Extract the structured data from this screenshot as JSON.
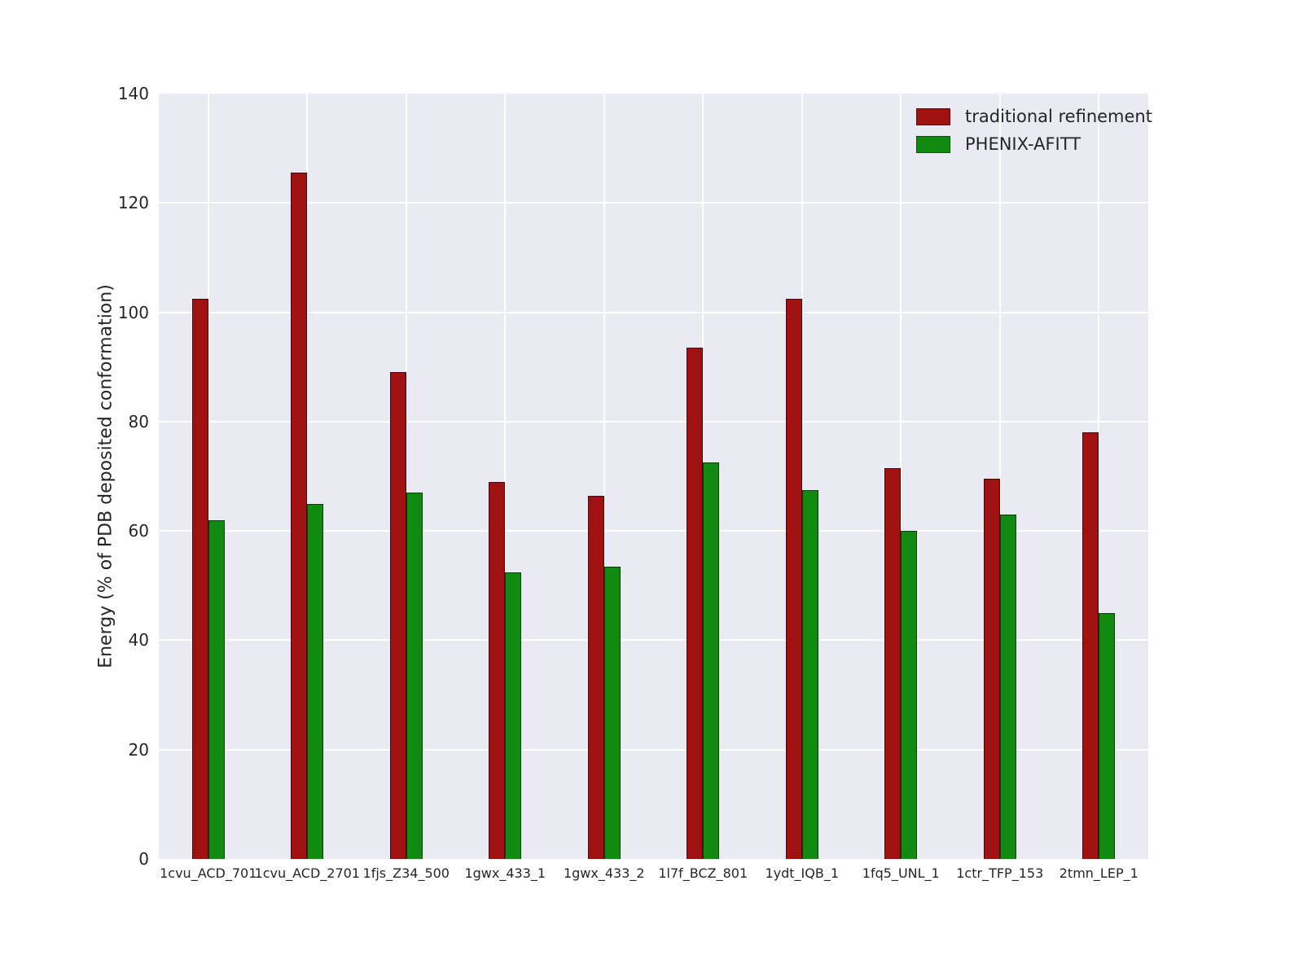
{
  "chart_data": {
    "type": "bar",
    "title": "",
    "xlabel": "",
    "ylabel": "Energy (% of PDB deposited conformation)",
    "ylim": [
      0,
      140
    ],
    "yticks": [
      0,
      20,
      40,
      60,
      80,
      100,
      120,
      140
    ],
    "grid": true,
    "legend_position": "upper right",
    "plot_background": "#eaeaf2",
    "categories": [
      "1cvu_ACD_701",
      "1cvu_ACD_2701",
      "1fjs_Z34_500",
      "1gwx_433_1",
      "1gwx_433_2",
      "1l7f_BCZ_801",
      "1ydt_IQB_1",
      "1fq5_UNL_1",
      "1ctr_TFP_153",
      "2tmn_LEP_1"
    ],
    "series": [
      {
        "name": "traditional refinement",
        "color": "#a01212",
        "values": [
          102.5,
          125.5,
          89,
          69,
          66.5,
          93.5,
          102.5,
          71.5,
          69.5,
          78
        ]
      },
      {
        "name": "PHENIX-AFITT",
        "color": "#128a12",
        "values": [
          62,
          65,
          67,
          52.5,
          53.5,
          72.5,
          67.5,
          60,
          63,
          45
        ]
      }
    ]
  }
}
